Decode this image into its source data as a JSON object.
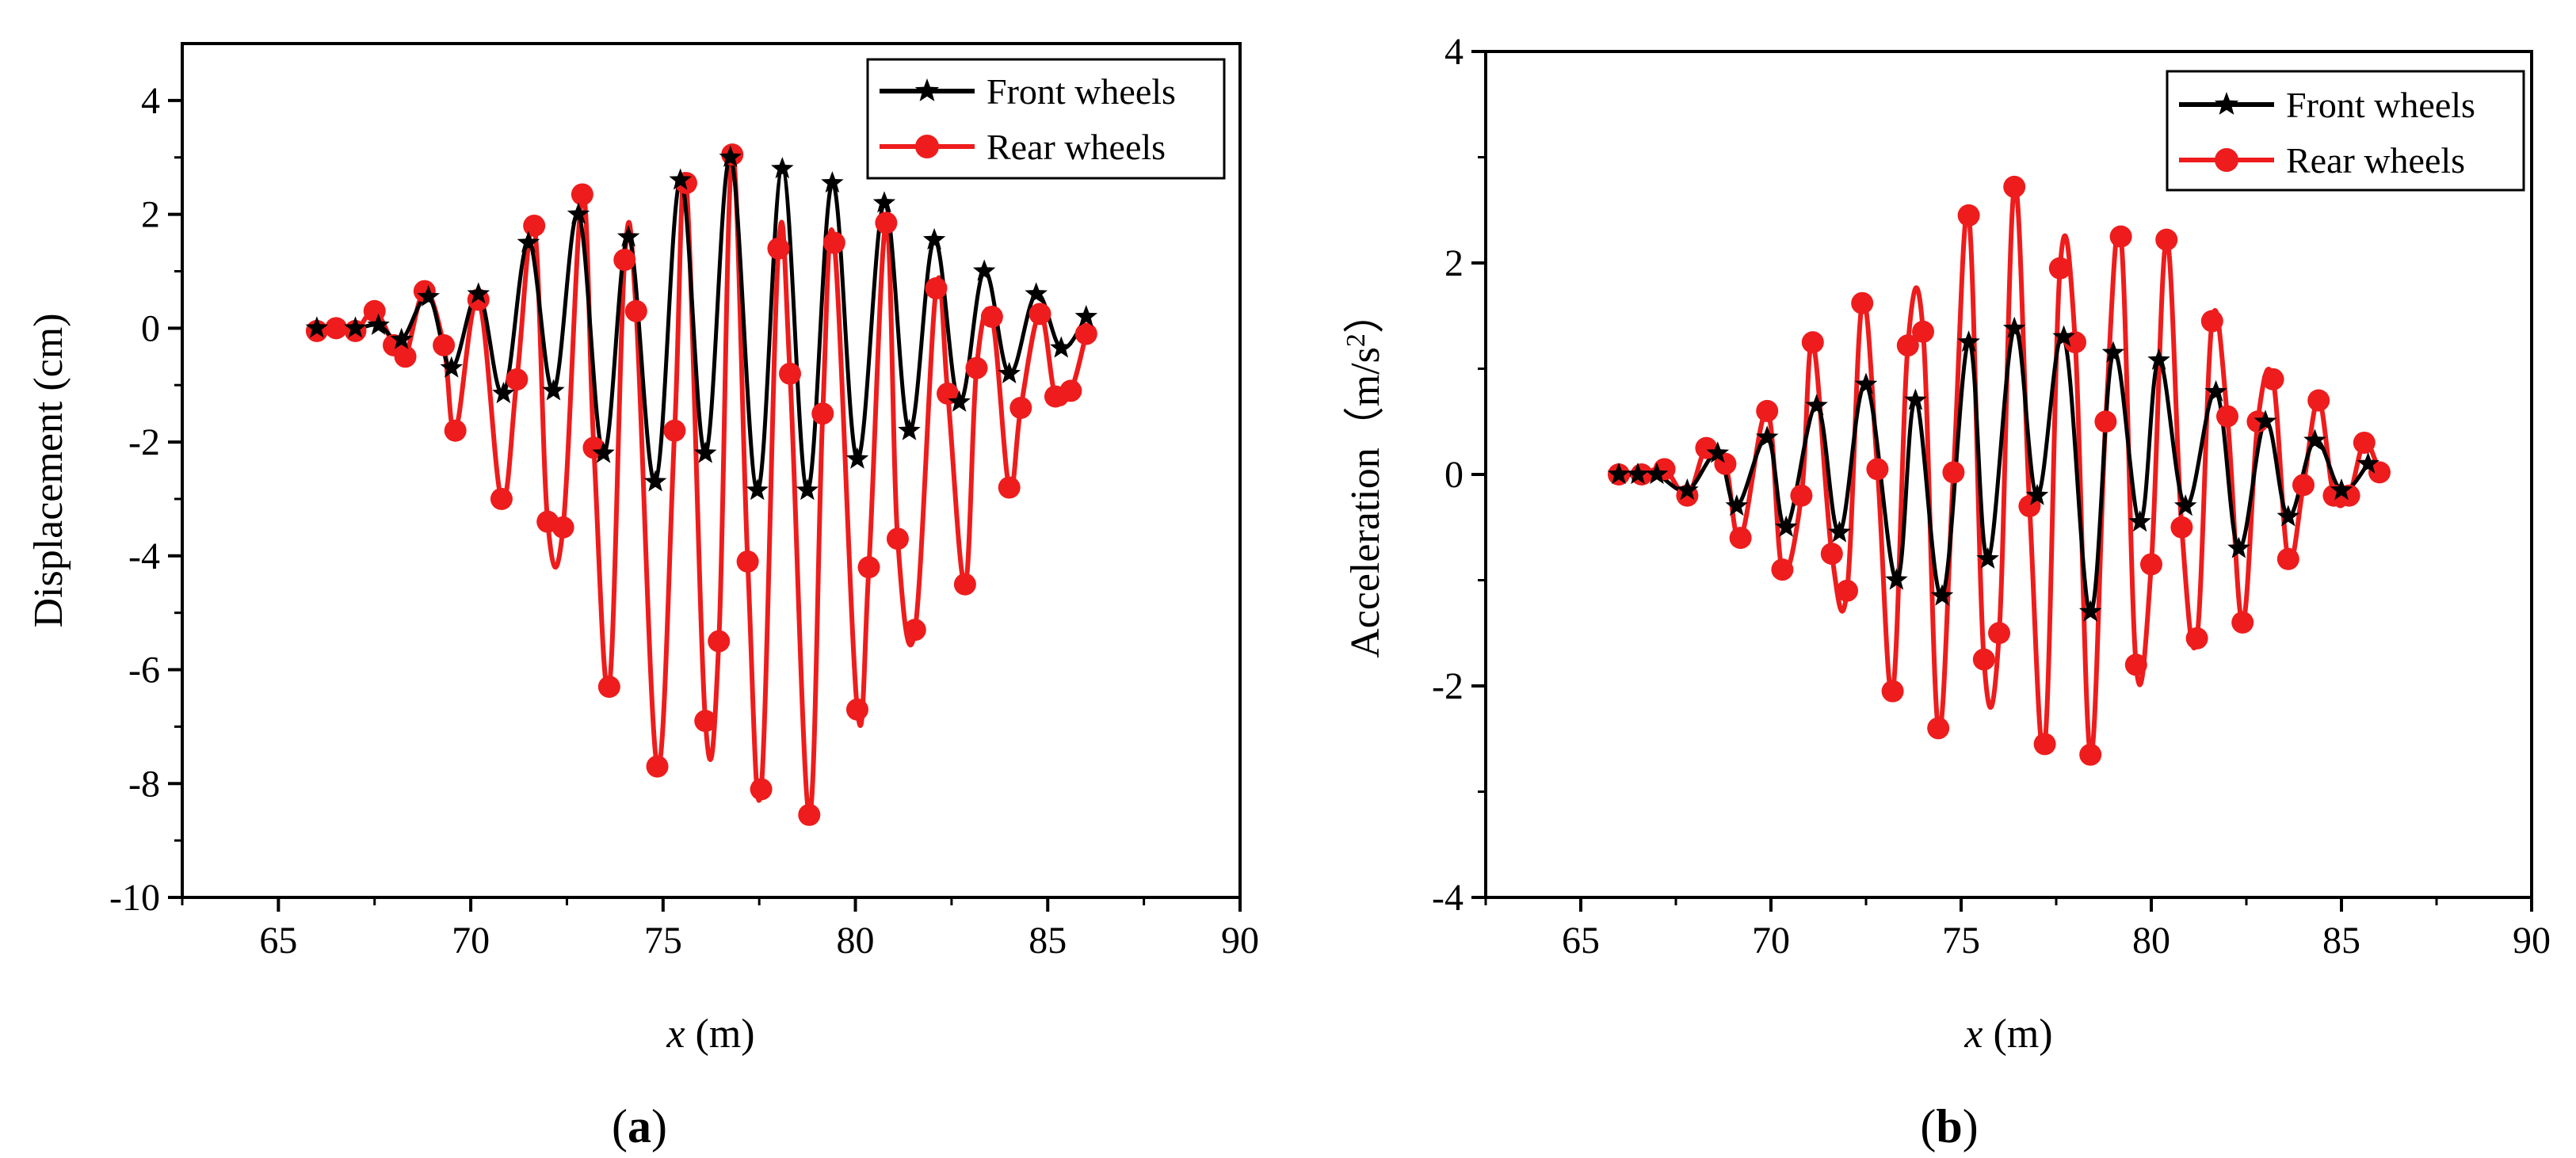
{
  "figure": {
    "colors": {
      "front": "#000000",
      "rear": "#ee1c1c",
      "axis": "#000000",
      "background": "#ffffff"
    },
    "icons": {
      "front_marker": "star-icon",
      "rear_marker": "circle-icon"
    }
  },
  "chart_data": [
    {
      "type": "line",
      "panel_label": "(a)",
      "panel_letter": "a",
      "xlabel_var": "x",
      "xlabel_unit": " (m)",
      "ylabel": "Displacement (cm)",
      "xlim": [
        62.5,
        90
      ],
      "ylim": [
        -10,
        5
      ],
      "xticks": [
        65,
        70,
        75,
        80,
        85,
        90
      ],
      "yticks": [
        -10,
        -8,
        -6,
        -4,
        -2,
        0,
        2,
        4
      ],
      "xtick_labels": [
        "65",
        "70",
        "75",
        "80",
        "85",
        "90"
      ],
      "ytick_labels": [
        "-10",
        "-8",
        "-6",
        "-4",
        "-2",
        "0",
        "2",
        "4"
      ],
      "legend_position": "top-right",
      "series": [
        {
          "name": "Front wheels",
          "marker": "star",
          "x": [
            66,
            67,
            67.6,
            68.2,
            68.9,
            69.5,
            70.2,
            70.85,
            71.5,
            72.15,
            72.8,
            73.45,
            74.1,
            74.8,
            75.45,
            76.1,
            76.75,
            77.45,
            78.1,
            78.75,
            79.4,
            80.05,
            80.75,
            81.4,
            82.05,
            82.7,
            83.35,
            84.0,
            84.7,
            85.35,
            86
          ],
          "y": [
            0,
            0,
            0.05,
            -0.2,
            0.55,
            -0.7,
            0.6,
            -1.15,
            1.5,
            -1.1,
            2.0,
            -2.2,
            1.6,
            -2.7,
            2.6,
            -2.2,
            3.0,
            -2.85,
            2.8,
            -2.85,
            2.55,
            -2.3,
            2.2,
            -1.8,
            1.55,
            -1.3,
            1.0,
            -0.8,
            0.6,
            -0.35,
            0.2
          ]
        },
        {
          "name": "Rear wheels",
          "marker": "circle",
          "x": [
            66,
            66.5,
            67.0,
            67.5,
            68.0,
            68.3,
            68.8,
            69.3,
            69.6,
            70.2,
            70.8,
            71.2,
            71.65,
            72.0,
            72.4,
            72.9,
            73.2,
            73.6,
            74.0,
            74.3,
            74.85,
            75.3,
            75.6,
            76.1,
            76.45,
            76.8,
            77.2,
            77.55,
            78.0,
            78.3,
            78.8,
            79.15,
            79.45,
            80.05,
            80.35,
            80.8,
            81.1,
            81.55,
            82.1,
            82.4,
            82.85,
            83.15,
            83.55,
            84.0,
            84.3,
            84.8,
            85.2,
            85.6,
            86.0
          ],
          "y": [
            -0.05,
            0,
            -0.05,
            0.3,
            -0.3,
            -0.5,
            0.65,
            -0.3,
            -1.8,
            0.5,
            -3.0,
            -0.9,
            1.8,
            -3.4,
            -3.5,
            2.35,
            -2.1,
            -6.3,
            1.2,
            0.3,
            -7.7,
            -1.8,
            2.55,
            -6.9,
            -5.5,
            3.05,
            -4.1,
            -8.1,
            1.4,
            -0.8,
            -8.55,
            -1.5,
            1.5,
            -6.7,
            -4.2,
            1.85,
            -3.7,
            -5.3,
            0.7,
            -1.15,
            -4.5,
            -0.7,
            0.2,
            -2.8,
            -1.4,
            0.25,
            -1.2,
            -1.1,
            -0.1
          ]
        }
      ]
    },
    {
      "type": "line",
      "panel_label": "(b)",
      "panel_letter": "b",
      "xlabel_var": "x",
      "xlabel_unit": " (m)",
      "ylabel_main": "Acceleration（m/s",
      "ylabel_sup": "2",
      "ylabel_end": "）",
      "xlim": [
        62.5,
        90
      ],
      "ylim": [
        -4,
        4
      ],
      "xticks": [
        65,
        70,
        75,
        80,
        85,
        90
      ],
      "yticks": [
        -4,
        -2,
        0,
        2,
        4
      ],
      "xtick_labels": [
        "65",
        "70",
        "75",
        "80",
        "85",
        "90"
      ],
      "ytick_labels": [
        "-4",
        "-2",
        "0",
        "2",
        "4"
      ],
      "legend_position": "top-right",
      "series": [
        {
          "name": "Front wheels",
          "marker": "star",
          "x": [
            66,
            66.5,
            67,
            67.8,
            68.6,
            69.1,
            69.9,
            70.4,
            71.2,
            71.8,
            72.5,
            73.3,
            73.8,
            74.5,
            75.2,
            75.7,
            76.4,
            77.0,
            77.7,
            78.4,
            79.0,
            79.7,
            80.2,
            80.9,
            81.7,
            82.3,
            83.0,
            83.6,
            84.3,
            85.0,
            85.7
          ],
          "y": [
            0,
            0,
            0,
            -0.15,
            0.2,
            -0.3,
            0.35,
            -0.5,
            0.65,
            -0.55,
            0.85,
            -1.0,
            0.7,
            -1.15,
            1.25,
            -0.8,
            1.38,
            -0.2,
            1.3,
            -1.3,
            1.15,
            -0.45,
            1.08,
            -0.3,
            0.78,
            -0.7,
            0.5,
            -0.4,
            0.32,
            -0.15,
            0.1
          ]
        },
        {
          "name": "Rear wheels",
          "marker": "circle",
          "x": [
            66,
            66.6,
            67.2,
            67.8,
            68.3,
            68.8,
            69.2,
            69.9,
            70.3,
            70.8,
            71.1,
            71.6,
            72.0,
            72.4,
            72.8,
            73.2,
            73.6,
            74.0,
            74.4,
            74.8,
            75.2,
            75.6,
            76.0,
            76.4,
            76.8,
            77.2,
            77.6,
            78.0,
            78.4,
            78.8,
            79.2,
            79.6,
            80.0,
            80.4,
            80.8,
            81.2,
            81.6,
            82.0,
            82.4,
            82.8,
            83.2,
            83.6,
            84.0,
            84.4,
            84.8,
            85.2,
            85.6,
            86.0
          ],
          "y": [
            0,
            0,
            0.05,
            -0.2,
            0.25,
            0.1,
            -0.6,
            0.6,
            -0.9,
            -0.2,
            1.25,
            -0.75,
            -1.1,
            1.62,
            0.05,
            -2.05,
            1.22,
            1.35,
            -2.4,
            0.02,
            2.45,
            -1.75,
            -1.5,
            2.72,
            -0.3,
            -2.55,
            1.95,
            1.25,
            -2.65,
            0.5,
            2.25,
            -1.8,
            -0.85,
            2.22,
            -0.5,
            -1.55,
            1.45,
            0.55,
            -1.4,
            0.5,
            0.9,
            -0.8,
            -0.1,
            0.7,
            -0.2,
            -0.2,
            0.3,
            0.02
          ]
        }
      ]
    }
  ]
}
